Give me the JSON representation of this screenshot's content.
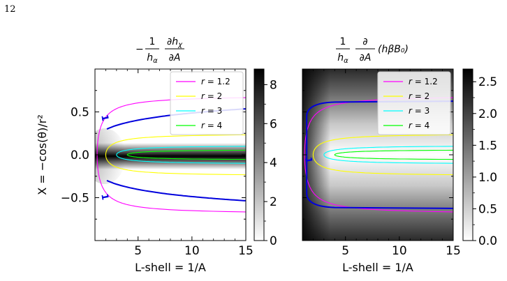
{
  "page_number": "12",
  "chart_data": [
    {
      "type": "heatmap",
      "title": {
        "prefix": "−",
        "frac_left_num": "1",
        "frac_left_den": "h",
        "frac_left_den_sub": "α",
        "frac_right_num": "∂h",
        "frac_right_num_sub": "χ",
        "frac_right_den": "∂A"
      },
      "xlabel": "L-shell = 1/A",
      "ylabel": "X = −cos(θ)/r²",
      "xlim": [
        1,
        15
      ],
      "ylim": [
        -1,
        1
      ],
      "x_ticks": [
        "5",
        "10",
        "15"
      ],
      "y_ticks": [
        "0.5",
        "0.0",
        "−0.5"
      ],
      "colorbar": {
        "range": [
          0,
          8.8
        ],
        "ticks": [
          "0",
          "2",
          "4",
          "6",
          "8"
        ],
        "colormap": "white-to-black"
      },
      "contours": [
        {
          "name": "r = 1.2",
          "color": "#ff00ff",
          "r": 1.2
        },
        {
          "name": "r = 2",
          "color": "#ffff00",
          "r": 2
        },
        {
          "name": "r = 3",
          "color": "#00ffff",
          "r": 3
        },
        {
          "name": "r = 4",
          "color": "#00ff00",
          "r": 4
        }
      ],
      "blue_contour": {
        "label": "1",
        "color": "#0000dd"
      },
      "legend_placement": "top-right"
    },
    {
      "type": "heatmap",
      "title": {
        "prefix": "",
        "frac_left_num": "1",
        "frac_left_den": "h",
        "frac_left_den_sub": "α",
        "frac_right_num": "∂",
        "frac_right_num_sub": "",
        "frac_right_den": "∂A",
        "suffix": "(hβB₀)"
      },
      "xlabel": "L-shell = 1/A",
      "xlim": [
        1,
        15
      ],
      "ylim": [
        -1,
        1
      ],
      "x_ticks": [
        "5",
        "10",
        "15"
      ],
      "colorbar": {
        "range": [
          0,
          2.7
        ],
        "ticks": [
          "0.0",
          "0.5",
          "1.0",
          "1.5",
          "2.0",
          "2.5"
        ],
        "colormap": "white-to-black"
      },
      "contours": [
        {
          "name": "r = 1.2",
          "color": "#ff00ff",
          "r": 1.2
        },
        {
          "name": "r = 2",
          "color": "#ffff00",
          "r": 2
        },
        {
          "name": "r = 3",
          "color": "#00ffff",
          "r": 3
        },
        {
          "name": "r = 4",
          "color": "#00ff00",
          "r": 4
        }
      ],
      "blue_contour": {
        "label": "1",
        "color": "#0000dd"
      },
      "legend_placement": "top-right"
    }
  ]
}
